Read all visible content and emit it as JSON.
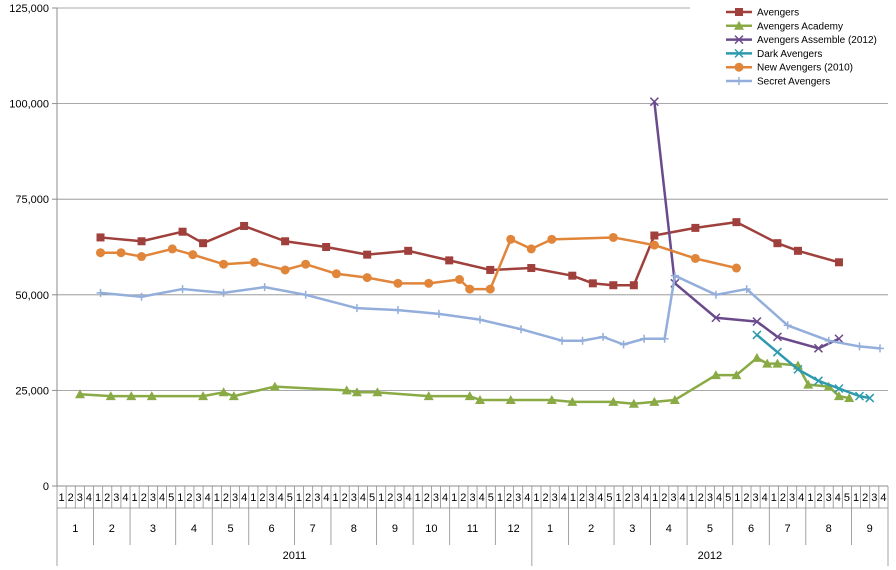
{
  "chart_data": {
    "type": "line",
    "title": "",
    "xlabel": "",
    "ylabel": "",
    "ylim": [
      0,
      125000
    ],
    "yticks": [
      0,
      25000,
      50000,
      75000,
      100000,
      125000
    ],
    "ytick_labels": [
      "0",
      "25,000",
      "50,000",
      "75,000",
      "100,000",
      "125,000"
    ],
    "grid": "horizontal",
    "legend_position": "top-right",
    "x_axis": {
      "years": [
        {
          "label": "2011",
          "months": [
            {
              "label": "1",
              "weeks": [
                "1",
                "2",
                "3",
                "4"
              ]
            },
            {
              "label": "2",
              "weeks": [
                "1",
                "2",
                "3",
                "4"
              ]
            },
            {
              "label": "3",
              "weeks": [
                "1",
                "2",
                "3",
                "4",
                "5"
              ]
            },
            {
              "label": "4",
              "weeks": [
                "1",
                "2",
                "3",
                "4"
              ]
            },
            {
              "label": "5",
              "weeks": [
                "1",
                "2",
                "3",
                "4"
              ]
            },
            {
              "label": "6",
              "weeks": [
                "1",
                "2",
                "3",
                "4",
                "5"
              ]
            },
            {
              "label": "7",
              "weeks": [
                "1",
                "2",
                "3",
                "4"
              ]
            },
            {
              "label": "8",
              "weeks": [
                "1",
                "2",
                "3",
                "4",
                "5"
              ]
            },
            {
              "label": "9",
              "weeks": [
                "1",
                "2",
                "3",
                "4"
              ]
            },
            {
              "label": "10",
              "weeks": [
                "1",
                "2",
                "3",
                "4"
              ]
            },
            {
              "label": "11",
              "weeks": [
                "1",
                "2",
                "3",
                "4",
                "5"
              ]
            },
            {
              "label": "12",
              "weeks": [
                "1",
                "2",
                "3",
                "4"
              ]
            }
          ]
        },
        {
          "label": "2012",
          "months": [
            {
              "label": "1",
              "weeks": [
                "1",
                "2",
                "3",
                "4"
              ]
            },
            {
              "label": "2",
              "weeks": [
                "1",
                "2",
                "3",
                "4",
                "5"
              ]
            },
            {
              "label": "3",
              "weeks": [
                "1",
                "2",
                "3",
                "4"
              ]
            },
            {
              "label": "4",
              "weeks": [
                "1",
                "2",
                "3",
                "4"
              ]
            },
            {
              "label": "5",
              "weeks": [
                "1",
                "2",
                "3",
                "4",
                "5"
              ]
            },
            {
              "label": "6",
              "weeks": [
                "1",
                "2",
                "3",
                "4"
              ]
            },
            {
              "label": "7",
              "weeks": [
                "1",
                "2",
                "3",
                "4"
              ]
            },
            {
              "label": "8",
              "weeks": [
                "1",
                "2",
                "3",
                "4",
                "5"
              ]
            },
            {
              "label": "9",
              "weeks": [
                "1",
                "2",
                "3",
                "4"
              ]
            }
          ]
        }
      ]
    },
    "series": [
      {
        "name": "Avengers",
        "color": "#A0403C",
        "marker": "square",
        "points": [
          [
            1,
            65000
          ],
          [
            3,
            64000
          ],
          [
            5,
            66500
          ],
          [
            6,
            63500
          ],
          [
            8,
            68000
          ],
          [
            10,
            64000
          ],
          [
            12,
            62500
          ],
          [
            14,
            60500
          ],
          [
            16,
            61500
          ],
          [
            18,
            59000
          ],
          [
            20,
            56500
          ],
          [
            22,
            57000
          ],
          [
            24,
            55000
          ],
          [
            25,
            53000
          ],
          [
            26,
            52500
          ],
          [
            27,
            52500
          ],
          [
            28,
            65500
          ],
          [
            30,
            67500
          ],
          [
            32,
            69000
          ],
          [
            34,
            63500
          ],
          [
            35,
            61500
          ],
          [
            37,
            58500
          ]
        ]
      },
      {
        "name": "Avengers Academy",
        "color": "#8AAA46",
        "marker": "triangle",
        "points": [
          [
            0,
            24000
          ],
          [
            1.5,
            23500
          ],
          [
            2.5,
            23500
          ],
          [
            3.5,
            23500
          ],
          [
            6,
            23500
          ],
          [
            7,
            24500
          ],
          [
            7.5,
            23500
          ],
          [
            9.5,
            26000
          ],
          [
            13,
            25000
          ],
          [
            13.5,
            24500
          ],
          [
            14.5,
            24500
          ],
          [
            17,
            23500
          ],
          [
            19,
            23500
          ],
          [
            19.5,
            22500
          ],
          [
            21,
            22500
          ],
          [
            23,
            22500
          ],
          [
            24,
            22000
          ],
          [
            26,
            22000
          ],
          [
            27,
            21500
          ],
          [
            28,
            22000
          ],
          [
            29,
            22500
          ],
          [
            31,
            29000
          ],
          [
            32,
            29000
          ],
          [
            33,
            33500
          ],
          [
            33.5,
            32000
          ],
          [
            34,
            32000
          ],
          [
            35,
            31500
          ],
          [
            35.5,
            26500
          ],
          [
            36.5,
            26000
          ],
          [
            37,
            23500
          ],
          [
            37.5,
            23000
          ]
        ]
      },
      {
        "name": "Avengers Assemble (2012)",
        "color": "#6B4A8C",
        "marker": "x",
        "points": [
          [
            28,
            100500
          ],
          [
            29,
            53000
          ],
          [
            31,
            44000
          ],
          [
            33,
            43000
          ],
          [
            34,
            39000
          ],
          [
            36,
            36000
          ],
          [
            37,
            38500
          ]
        ]
      },
      {
        "name": "Dark Avengers",
        "color": "#2E9AAE",
        "marker": "x",
        "points": [
          [
            33,
            39500
          ],
          [
            34,
            35000
          ],
          [
            35,
            30500
          ],
          [
            36,
            27500
          ],
          [
            37,
            25500
          ],
          [
            38,
            23500
          ],
          [
            38.5,
            23000
          ]
        ]
      },
      {
        "name": "New Avengers (2010)",
        "color": "#E0853A",
        "marker": "circle",
        "points": [
          [
            1,
            61000
          ],
          [
            2,
            61000
          ],
          [
            3,
            60000
          ],
          [
            4.5,
            62000
          ],
          [
            5.5,
            60500
          ],
          [
            7,
            58000
          ],
          [
            8.5,
            58500
          ],
          [
            10,
            56500
          ],
          [
            11,
            58000
          ],
          [
            12.5,
            55500
          ],
          [
            14,
            54500
          ],
          [
            15.5,
            53000
          ],
          [
            17,
            53000
          ],
          [
            18.5,
            54000
          ],
          [
            19,
            51500
          ],
          [
            20,
            51500
          ],
          [
            21,
            64500
          ],
          [
            22,
            62000
          ],
          [
            23,
            64500
          ],
          [
            26,
            65000
          ],
          [
            28,
            63000
          ],
          [
            30,
            59500
          ],
          [
            32,
            57000
          ]
        ]
      },
      {
        "name": "Secret Avengers",
        "color": "#93AEDB",
        "marker": "plus",
        "points": [
          [
            1,
            50500
          ],
          [
            3,
            49500
          ],
          [
            5,
            51500
          ],
          [
            7,
            50500
          ],
          [
            9,
            52000
          ],
          [
            11,
            50000
          ],
          [
            13.5,
            46500
          ],
          [
            15.5,
            46000
          ],
          [
            17.5,
            45000
          ],
          [
            19.5,
            43500
          ],
          [
            21.5,
            41000
          ],
          [
            23.5,
            38000
          ],
          [
            24.5,
            38000
          ],
          [
            25.5,
            39000
          ],
          [
            26.5,
            37000
          ],
          [
            27.5,
            38500
          ],
          [
            28.5,
            38500
          ],
          [
            29,
            55000
          ],
          [
            31,
            50000
          ],
          [
            32.5,
            51500
          ],
          [
            34.5,
            42000
          ],
          [
            36.5,
            38000
          ],
          [
            38,
            36500
          ],
          [
            39,
            36000
          ]
        ]
      }
    ]
  }
}
